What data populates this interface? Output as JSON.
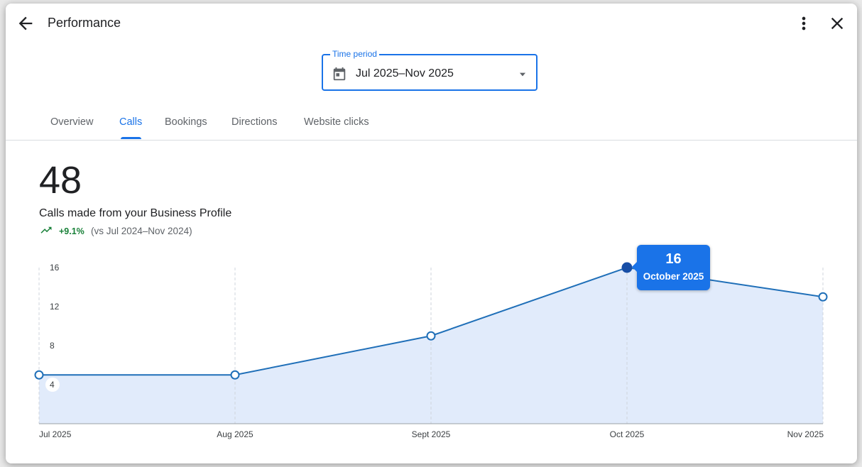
{
  "header": {
    "title": "Performance"
  },
  "time_period": {
    "label": "Time period",
    "value": "Jul 2025–Nov 2025"
  },
  "tabs": [
    {
      "label": "Overview",
      "active": false
    },
    {
      "label": "Calls",
      "active": true
    },
    {
      "label": "Bookings",
      "active": false
    },
    {
      "label": "Directions",
      "active": false
    },
    {
      "label": "Website clicks",
      "active": false
    }
  ],
  "metric": {
    "value": "48",
    "label": "Calls made from your Business Profile",
    "change": "+9.1%",
    "comparison": "(vs Jul 2024–Nov 2024)"
  },
  "tooltip": {
    "value": "16",
    "month": "October 2025"
  },
  "colors": {
    "accent": "#1a73e8",
    "line": "#1f6fb8",
    "positive": "#188038"
  },
  "chart_data": {
    "type": "area",
    "categories": [
      "Jul 2025",
      "Aug 2025",
      "Sept 2025",
      "Oct 2025",
      "Nov 2025"
    ],
    "series": [
      {
        "values": [
          5,
          5,
          9,
          16,
          13
        ]
      }
    ],
    "yticks": [
      16,
      12,
      8,
      4
    ],
    "ylim": [
      0,
      16
    ],
    "highlighted_index": 3,
    "grid": "vertical-dashed"
  }
}
